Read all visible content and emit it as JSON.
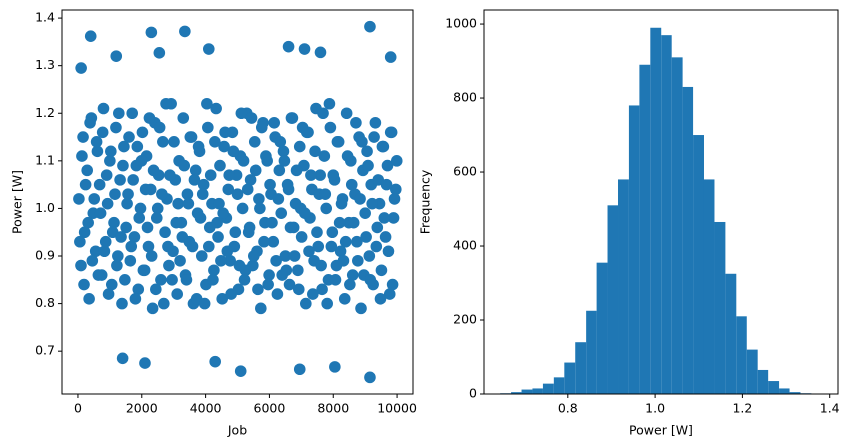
{
  "chart_data": [
    {
      "type": "scatter",
      "xlabel": "Job",
      "ylabel": "Power [W]",
      "color": "#1f77b4",
      "xlim": [
        -500,
        10499
      ],
      "ylim": [
        0.61,
        1.417
      ],
      "xticks": [
        0,
        2000,
        4000,
        6000,
        8000,
        10000
      ],
      "yticks": [
        0.7,
        0.8,
        0.9,
        {
          "value": 1,
          "label": "1.0"
        },
        1.1,
        1.2,
        1.3,
        1.4
      ],
      "x": [
        30,
        95,
        160,
        210,
        290,
        350,
        420,
        480,
        555,
        610,
        680,
        745,
        800,
        870,
        930,
        1000,
        1060,
        1130,
        1190,
        1250,
        1320,
        1380,
        1440,
        1510,
        1570,
        1640,
        1700,
        1770,
        1830,
        1890,
        1960,
        2020,
        2090,
        2150,
        2210,
        2280,
        2340,
        2410,
        2470,
        2530,
        2600,
        2660,
        2730,
        2790,
        2850,
        2920,
        2980,
        3050,
        3110,
        3170,
        3240,
        3300,
        3370,
        3430,
        3490,
        3560,
        3620,
        3690,
        3750,
        3810,
        3880,
        3940,
        4010,
        4070,
        4130,
        4200,
        4260,
        4330,
        4390,
        4450,
        4520,
        4580,
        4650,
        4710,
        4770,
        4840,
        4900,
        4970,
        5030,
        5090,
        5160,
        5220,
        5290,
        5350,
        5410,
        5480,
        5540,
        5610,
        5670,
        5730,
        5800,
        5860,
        5930,
        5990,
        6050,
        6120,
        6180,
        6250,
        6310,
        6370,
        6440,
        6500,
        6570,
        6630,
        6690,
        6760,
        6820,
        6890,
        6950,
        7010,
        7080,
        7140,
        7210,
        7270,
        7330,
        7400,
        7460,
        7530,
        7590,
        7650,
        7720,
        7780,
        7850,
        7910,
        7970,
        8040,
        8100,
        8170,
        8230,
        8290,
        8360,
        8420,
        8490,
        8550,
        8610,
        8680,
        8740,
        8810,
        8870,
        8930,
        9000,
        9060,
        9130,
        9190,
        9250,
        9320,
        9380,
        9450,
        9510,
        9570,
        9640,
        9700,
        9770,
        9830,
        9890,
        9960,
        60,
        125,
        190,
        240,
        320,
        380,
        450,
        510,
        585,
        640,
        710,
        775,
        830,
        900,
        960,
        1030,
        1090,
        1160,
        1220,
        1280,
        1350,
        1410,
        1470,
        1540,
        1600,
        1670,
        1730,
        1800,
        1860,
        1920,
        1990,
        2050,
        2120,
        2180,
        2240,
        2310,
        2370,
        2440,
        2500,
        2560,
        2630,
        2690,
        2760,
        2820,
        2880,
        2950,
        3010,
        3080,
        3140,
        3200,
        3270,
        3330,
        3400,
        3460,
        3520,
        3590,
        3650,
        3720,
        3780,
        3840,
        3910,
        3970,
        4040,
        4100,
        4160,
        4230,
        4290,
        4360,
        4420,
        4480,
        4550,
        4610,
        4680,
        4740,
        4800,
        4870,
        4930,
        5000,
        5060,
        5120,
        5190,
        5250,
        5320,
        5380,
        5440,
        5510,
        5570,
        5640,
        5700,
        5760,
        5830,
        5890,
        5960,
        6020,
        6080,
        6150,
        6210,
        6280,
        6340,
        6400,
        6470,
        6530,
        6600,
        6660,
        6720,
        6790,
        6850,
        6920,
        6980,
        7040,
        7110,
        7170,
        7240,
        7300,
        7360,
        7430,
        7490,
        7560,
        7620,
        7680,
        7750,
        7810,
        7880,
        7940,
        8000,
        8070,
        8130,
        8200,
        8260,
        8320,
        8390,
        8450,
        8520,
        8580,
        8640,
        8710,
        8770,
        8840,
        8900,
        8960,
        9030,
        9090,
        9160,
        9220,
        9280,
        9350,
        9410,
        9480,
        9540,
        9600,
        9670,
        9730,
        9800,
        9860,
        9920,
        9990,
        400,
        2300,
        3350,
        9150,
        9150,
        5100,
        6950,
        8050,
        2100,
        4300,
        1400,
        9800,
        1200,
        2550,
        4100,
        6600,
        7100,
        7600,
        100
      ],
      "y": [
        1.02,
        0.88,
        1.15,
        0.95,
        1.08,
        0.81,
        1.19,
        0.99,
        0.91,
        1.12,
        1.05,
        0.86,
        1.21,
        0.93,
        1.01,
        1.1,
        0.84,
        0.97,
        1.17,
        0.9,
        1.06,
        0.8,
        1.13,
        0.96,
        1.03,
        0.89,
        1.2,
        0.94,
        1.09,
        0.83,
        1.0,
        1.16,
        0.87,
        1.11,
        0.92,
        1.04,
        0.79,
        1.18,
        0.98,
        1.07,
        0.85,
        1.14,
        0.95,
        1.02,
        0.88,
        1.22,
        0.91,
        1.06,
        0.82,
        1.1,
        0.97,
        1.19,
        0.86,
        1.03,
        0.93,
        1.15,
        0.8,
        1.08,
        0.99,
        1.12,
        0.9,
        1.05,
        0.84,
        1.17,
        0.96,
        1.01,
        0.87,
        1.21,
        0.94,
        1.09,
        0.81,
        1.13,
        0.98,
        1.04,
        0.89,
        1.16,
        0.92,
        1.07,
        0.83,
        1.11,
        1.0,
        0.85,
        1.2,
        0.95,
        1.06,
        0.88,
        1.14,
        0.91,
        1.02,
        0.79,
        1.18,
        0.97,
        1.1,
        0.86,
        1.03,
        0.93,
        1.15,
        0.82,
        1.08,
        0.99,
        1.12,
        0.9,
        1.05,
        0.84,
        1.19,
        0.96,
        1.01,
        0.87,
        1.13,
        0.94,
        1.09,
        0.8,
        1.16,
        0.98,
        1.04,
        0.89,
        1.21,
        0.92,
        1.07,
        0.83,
        1.11,
        1.0,
        0.85,
        1.17,
        0.95,
        1.06,
        0.88,
        1.14,
        0.91,
        1.02,
        0.81,
        1.2,
        0.97,
        1.1,
        0.86,
        1.03,
        0.93,
        1.15,
        0.79,
        1.08,
        0.99,
        1.12,
        0.9,
        1.05,
        0.84,
        1.18,
        0.96,
        1.01,
        0.87,
        1.13,
        0.94,
        1.09,
        0.82,
        1.16,
        0.98,
        1.04,
        0.93,
        1.11,
        0.84,
        1.05,
        0.97,
        1.18,
        0.89,
        1.02,
        1.14,
        0.86,
        0.99,
        1.16,
        0.91,
        1.07,
        0.82,
        1.12,
        0.95,
        1.03,
        0.88,
        1.2,
        0.94,
        1.09,
        0.85,
        1.01,
        1.15,
        0.92,
        1.06,
        0.81,
        1.13,
        0.98,
        1.1,
        0.87,
        1.04,
        0.96,
        1.19,
        0.9,
        1.08,
        0.83,
        1.0,
        1.17,
        1.03,
        0.8,
        1.22,
        0.92,
        1.07,
        0.85,
        1.14,
        0.97,
        1.01,
        0.89,
        0.94,
        1.09,
        0.85,
        1.01,
        1.15,
        0.92,
        1.06,
        0.81,
        1.13,
        0.98,
        1.03,
        0.8,
        1.22,
        0.92,
        1.07,
        0.85,
        1.14,
        0.97,
        1.01,
        0.89,
        0.99,
        1.16,
        0.91,
        1.07,
        0.82,
        1.12,
        0.95,
        1.03,
        0.88,
        1.2,
        1.1,
        0.87,
        1.04,
        0.96,
        1.19,
        0.9,
        1.08,
        0.83,
        1.0,
        1.17,
        0.93,
        1.11,
        0.84,
        1.05,
        0.97,
        1.18,
        0.89,
        1.02,
        1.14,
        0.86,
        1.1,
        0.87,
        1.04,
        0.96,
        1.19,
        0.9,
        1.08,
        0.83,
        1.0,
        1.17,
        0.99,
        1.16,
        0.91,
        1.07,
        0.82,
        1.12,
        0.95,
        1.03,
        0.88,
        1.2,
        1.03,
        0.8,
        1.22,
        0.92,
        1.07,
        0.85,
        1.14,
        0.97,
        1.01,
        0.89,
        0.93,
        1.11,
        0.84,
        1.05,
        0.97,
        1.18,
        0.89,
        1.02,
        1.14,
        0.86,
        0.94,
        1.09,
        0.85,
        1.01,
        1.15,
        0.92,
        1.06,
        0.81,
        1.13,
        0.98,
        1.05,
        0.91,
        1.16,
        0.84,
        1.02,
        1.1,
        1.362,
        1.37,
        1.372,
        1.382,
        0.645,
        0.658,
        0.662,
        0.667,
        0.675,
        0.678,
        0.685,
        1.318,
        1.32,
        1.327,
        1.335,
        1.34,
        1.335,
        1.328,
        1.295
      ]
    },
    {
      "type": "histogram",
      "xlabel": "Power [W]",
      "ylabel": "Frequency",
      "color": "#1f77b4",
      "xlim": [
        0.608,
        1.419
      ],
      "ylim": [
        0,
        1038
      ],
      "xticks": [
        0.8,
        {
          "value": 1,
          "label": "1.0"
        },
        1.2,
        1.4
      ],
      "yticks": [
        0,
        200,
        400,
        600,
        800,
        1000
      ],
      "bins": [
        0.645,
        0.67,
        0.694,
        0.719,
        0.743,
        0.768,
        0.792,
        0.817,
        0.842,
        0.866,
        0.891,
        0.915,
        0.94,
        0.964,
        0.989,
        1.014,
        1.038,
        1.063,
        1.087,
        1.112,
        1.136,
        1.161,
        1.186,
        1.21,
        1.235,
        1.259,
        1.284,
        1.308,
        1.333,
        1.358,
        1.382
      ],
      "values": [
        2,
        5,
        12,
        15,
        28,
        45,
        85,
        140,
        225,
        355,
        510,
        580,
        780,
        890,
        990,
        970,
        910,
        830,
        700,
        580,
        465,
        325,
        210,
        120,
        65,
        35,
        15,
        5,
        2,
        1
      ]
    }
  ]
}
